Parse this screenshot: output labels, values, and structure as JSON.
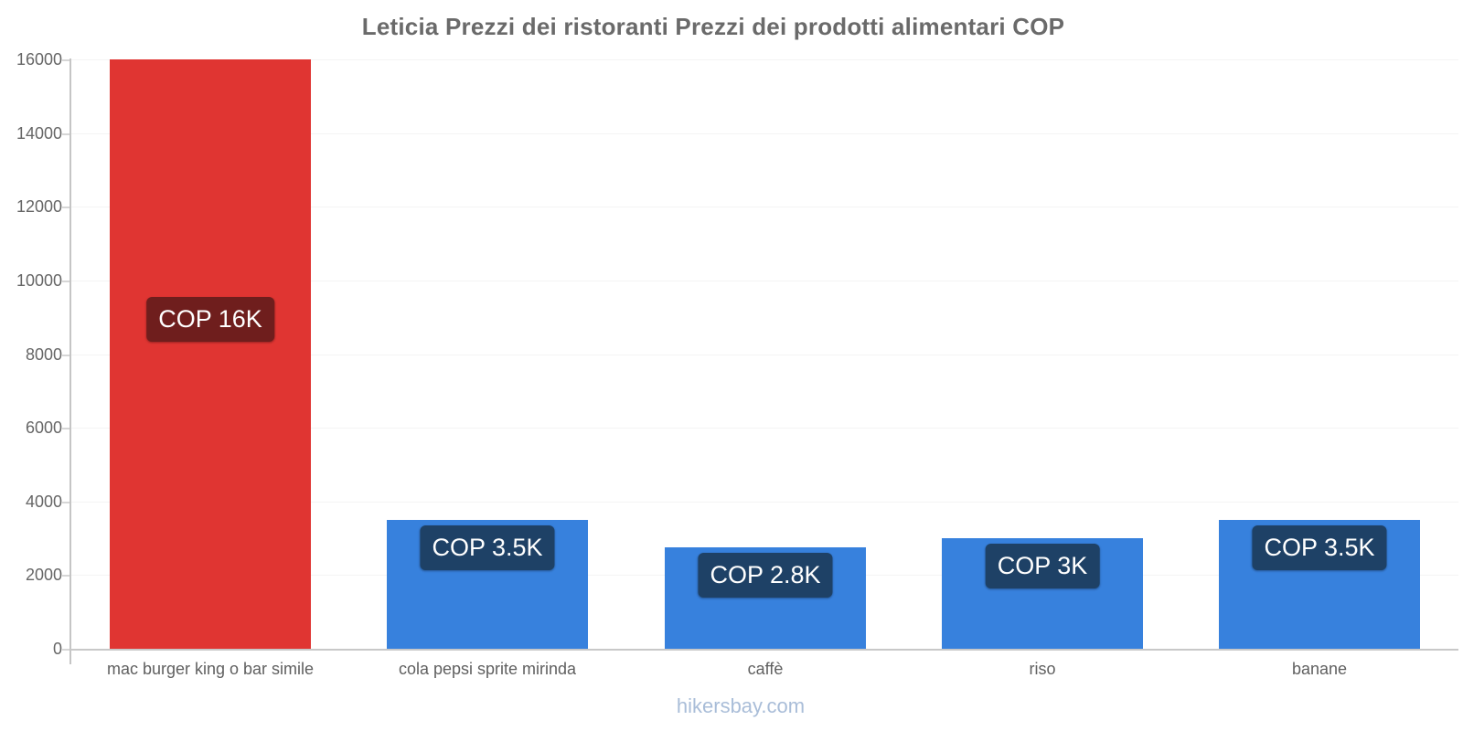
{
  "footer": "hikersbay.com",
  "colors": {
    "red_bar": "#e03532",
    "red_label_bg": "#6f1e1d",
    "blue_bar": "#3781dd",
    "blue_label_bg": "#1e4166",
    "title_text": "#6a6a6a",
    "axis_text": "#666666",
    "x_label_text": "#606060",
    "data_label_text": "#ffffff",
    "gridline": "#f4f4f4",
    "axis_line": "#c8c8c8",
    "footer_text": "#a9bdd8"
  },
  "chart_data": {
    "type": "bar",
    "title": "Leticia Prezzi dei ristoranti Prezzi dei prodotti alimentari COP",
    "categories": [
      "mac burger king o bar simile",
      "cola pepsi sprite mirinda",
      "caffè",
      "riso",
      "banane"
    ],
    "values": [
      16000,
      3500,
      2750,
      3000,
      3500
    ],
    "data_labels": [
      "COP 16K",
      "COP 3.5K",
      "COP 2.8K",
      "COP 3K",
      "COP 3.5K"
    ],
    "bar_colors": [
      "#e03532",
      "#3781dd",
      "#3781dd",
      "#3781dd",
      "#3781dd"
    ],
    "label_bg_colors": [
      "#6f1e1d",
      "#1e4166",
      "#1e4166",
      "#1e4166",
      "#1e4166"
    ],
    "currency": "COP",
    "xlabel": "",
    "ylabel": "",
    "ylim": [
      0,
      16000
    ],
    "yticks": [
      0,
      2000,
      4000,
      6000,
      8000,
      10000,
      12000,
      14000,
      16000
    ],
    "grid": "horizontal-faint",
    "legend": "none",
    "watermark": "hikersbay.com"
  }
}
